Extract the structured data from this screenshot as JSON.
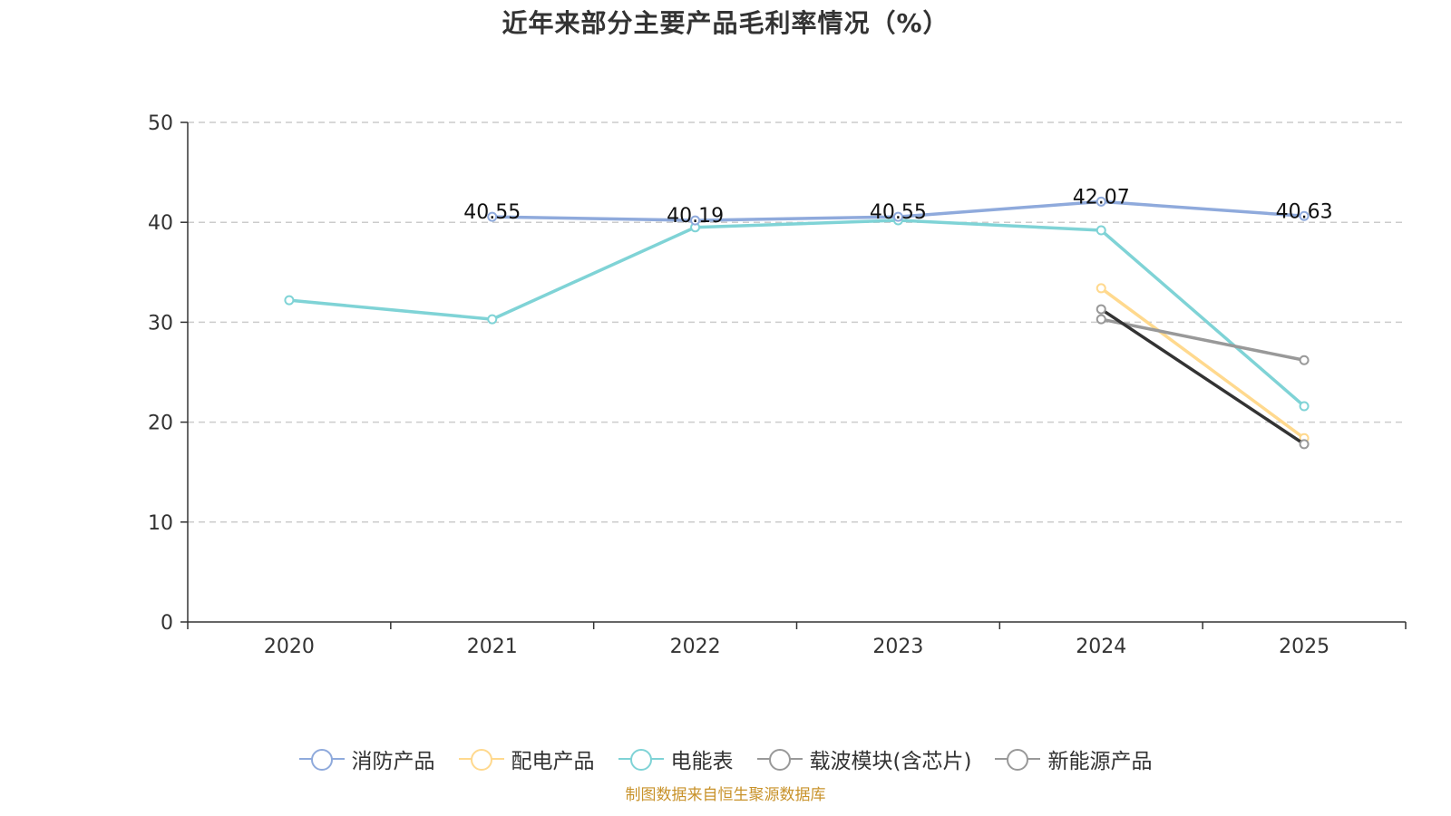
{
  "title": "近年来部分主要产品毛利率情况（%）",
  "source_note": "制图数据来自恒生聚源数据库",
  "chart_data": {
    "type": "line",
    "title": "近年来部分主要产品毛利率情况（%）",
    "categories": [
      "2020",
      "2021",
      "2022",
      "2023",
      "2024",
      "2025"
    ],
    "ylim": [
      0,
      50
    ],
    "yticks": [
      "0",
      "10",
      "20",
      "30",
      "40",
      "50"
    ],
    "grid": true,
    "legend_position": "bottom",
    "series": [
      {
        "name": "消防产品",
        "color": "#8faadc",
        "values": [
          null,
          40.55,
          40.19,
          40.55,
          42.07,
          40.63
        ],
        "labels": [
          null,
          "40.55",
          "40.19",
          "40.55",
          "42.07",
          "40.63"
        ]
      },
      {
        "name": "配电产品",
        "color": "#ffd98e",
        "values": [
          null,
          null,
          null,
          null,
          33.4,
          18.4
        ],
        "labels": [
          null,
          null,
          null,
          null,
          null,
          null
        ]
      },
      {
        "name": "电能表",
        "color": "#7fd3d6",
        "values": [
          32.2,
          30.3,
          39.5,
          40.2,
          39.2,
          21.6
        ],
        "labels": [
          null,
          null,
          null,
          null,
          null,
          null
        ]
      },
      {
        "name": "载波模块(含芯片)",
        "color": "#999999",
        "line_color": "#333333",
        "values": [
          null,
          null,
          null,
          null,
          31.3,
          17.8
        ],
        "labels": [
          null,
          null,
          null,
          null,
          null,
          null
        ]
      },
      {
        "name": "新能源产品",
        "color": "#999999",
        "line_color": "#999999",
        "values": [
          null,
          null,
          null,
          null,
          30.3,
          26.2
        ],
        "labels": [
          null,
          null,
          null,
          null,
          null,
          null
        ]
      }
    ]
  }
}
